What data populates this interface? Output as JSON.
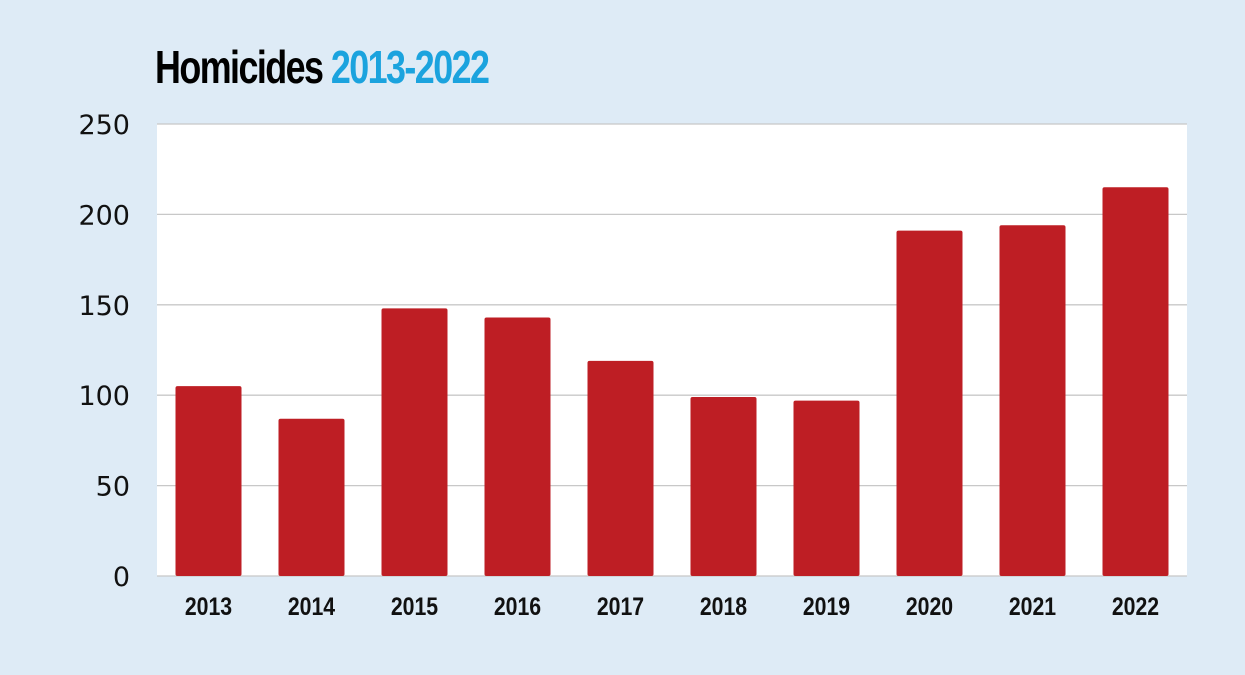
{
  "chart_data": {
    "type": "bar",
    "title": "Homicides",
    "title_highlight": "2013-2022",
    "categories": [
      "2013",
      "2014",
      "2015",
      "2016",
      "2017",
      "2018",
      "2019",
      "2020",
      "2021",
      "2022"
    ],
    "values": [
      105,
      87,
      148,
      143,
      119,
      99,
      97,
      191,
      194,
      215
    ],
    "xlabel": "",
    "ylabel": "",
    "ylim": [
      0,
      250
    ],
    "yticks": [
      0,
      50,
      100,
      150,
      200,
      250
    ],
    "grid": true,
    "legend": "none",
    "colors": {
      "bar": "#be1e24",
      "title_highlight": "#1ba3de",
      "background": "#deebf6",
      "plot_background": "#ffffff",
      "grid": "#c8c8c8"
    }
  }
}
